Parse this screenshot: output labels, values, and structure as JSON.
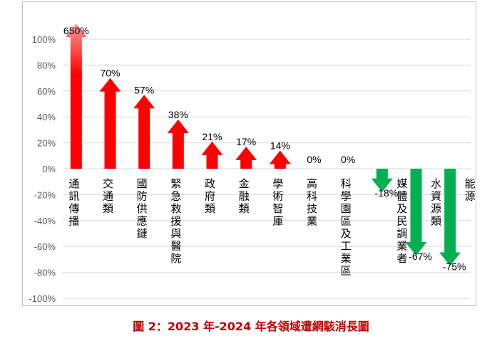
{
  "chart_data": {
    "type": "bar",
    "title": "",
    "xlabel": "",
    "ylabel": "",
    "ylim": [
      -100,
      100
    ],
    "y_ticks": [
      "100%",
      "80%",
      "60%",
      "40%",
      "20%",
      "0%",
      "-20%",
      "-40%",
      "-60%",
      "-80%",
      "-100%"
    ],
    "grid": true,
    "categories": [
      "通訊傳播",
      "交通類",
      "國防供應鏈",
      "緊急救援與醫院",
      "政府類",
      "金融類",
      "學術智庫",
      "高科技業",
      "科學園區及工業區",
      "媒體及民調業者",
      "水資源類",
      "能源"
    ],
    "values": [
      650,
      70,
      57,
      38,
      21,
      17,
      14,
      0,
      0,
      -18,
      -67,
      -75
    ],
    "value_labels": [
      "650%",
      "70%",
      "57%",
      "38%",
      "21%",
      "17%",
      "14%",
      "0%",
      "0%",
      "-18%",
      "-67%",
      "-75%"
    ],
    "colors": {
      "increase": "#ff0000",
      "decrease": "#00b050",
      "overflow": "#ff9999",
      "grid": "#d9d9d9"
    }
  },
  "caption": "圖 2：2023 年-2024 年各領域遭網駭消長圖"
}
